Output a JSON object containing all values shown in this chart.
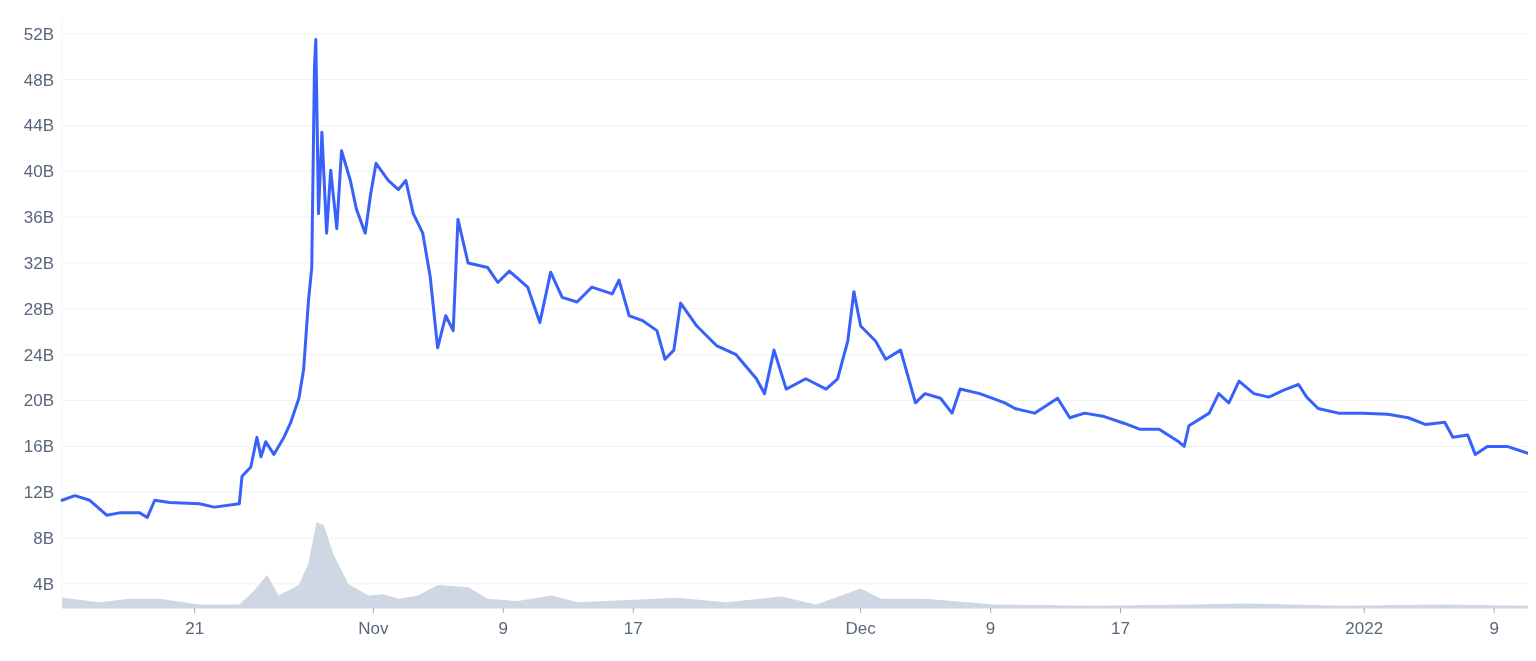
{
  "chart_data": {
    "type": "line",
    "grid": "y",
    "xlim": [
      "2021-10-12T20:00",
      "2022-01-11T02:00"
    ],
    "ylim": [
      1.9,
      53.2
    ],
    "yticks": [
      {
        "value": 4,
        "label": "4B"
      },
      {
        "value": 8,
        "label": "8B"
      },
      {
        "value": 12,
        "label": "12B"
      },
      {
        "value": 16,
        "label": "16B"
      },
      {
        "value": 20,
        "label": "20B"
      },
      {
        "value": 24,
        "label": "24B"
      },
      {
        "value": 28,
        "label": "28B"
      },
      {
        "value": 32,
        "label": "32B"
      },
      {
        "value": 36,
        "label": "36B"
      },
      {
        "value": 40,
        "label": "40B"
      },
      {
        "value": 44,
        "label": "44B"
      },
      {
        "value": 48,
        "label": "48B"
      },
      {
        "value": 52,
        "label": "52B"
      }
    ],
    "xticks": [
      {
        "value": "2021-10-21",
        "label": "21"
      },
      {
        "value": "2021-11-01",
        "label": "Nov"
      },
      {
        "value": "2021-11-09",
        "label": "9"
      },
      {
        "value": "2021-11-17",
        "label": "17"
      },
      {
        "value": "2021-12-01",
        "label": "Dec"
      },
      {
        "value": "2021-12-09",
        "label": "9"
      },
      {
        "value": "2021-12-17",
        "label": "17"
      },
      {
        "value": "2022-01-01",
        "label": "2022"
      },
      {
        "value": "2022-01-09",
        "label": "9"
      }
    ],
    "series": [
      {
        "type": "area",
        "color": "#cfd6e4",
        "x": [
          "2021-10-12T20:00",
          "2021-10-15T04:00",
          "2021-10-17T00:00",
          "2021-10-18T20:00",
          "2021-10-21T07:00",
          "2021-10-23T18:00",
          "2021-10-24T16:00",
          "2021-10-25T11:00",
          "2021-10-26T04:00",
          "2021-10-27T10:00",
          "2021-10-28T00:00",
          "2021-10-28T12:00",
          "2021-10-28T23:00",
          "2021-10-29T13:00",
          "2021-10-30T11:00",
          "2021-10-31T17:00",
          "2021-11-01T15:00",
          "2021-11-02T13:00",
          "2021-11-03T18:00",
          "2021-11-04T23:00",
          "2021-11-06T20:00",
          "2021-11-08T01:00",
          "2021-11-09T21:00",
          "2021-11-12T00:00",
          "2021-11-13T13:00",
          "2021-11-16T16:00",
          "2021-11-19T16:00",
          "2021-11-22T18:00",
          "2021-11-26T03:00",
          "2021-11-28T06:00",
          "2021-12-01T00:00",
          "2021-12-02T06:00",
          "2021-12-04T23:00",
          "2021-12-09T06:00",
          "2021-12-15T10:00",
          "2021-12-21T12:00",
          "2021-12-24T14:00",
          "2021-12-30T17:00",
          "2022-01-05T20:00",
          "2022-01-11T02:00"
        ],
        "values": [
          2.8,
          2.4,
          2.7,
          2.7,
          2.2,
          2.2,
          3.4,
          4.8,
          3.0,
          3.9,
          5.8,
          9.4,
          9.1,
          6.6,
          4.0,
          3.0,
          3.1,
          2.7,
          3.0,
          3.9,
          3.7,
          2.7,
          2.5,
          3.0,
          2.4,
          2.6,
          2.8,
          2.4,
          2.9,
          2.2,
          3.6,
          2.7,
          2.7,
          2.2,
          2.1,
          2.2,
          2.3,
          2.1,
          2.2,
          2.1
        ]
      },
      {
        "color": "#3861fb",
        "x": [
          "2021-10-12T20:00",
          "2021-10-13T15:00",
          "2021-10-14T13:00",
          "2021-10-15T14:00",
          "2021-10-16T09:00",
          "2021-10-17T15:00",
          "2021-10-18T02:00",
          "2021-10-18T13:00",
          "2021-10-19T11:00",
          "2021-10-21T07:00",
          "2021-10-22T05:00",
          "2021-10-23T18:00",
          "2021-10-23T22:00",
          "2021-10-24T11:00",
          "2021-10-24T20:00",
          "2021-10-25T02:00",
          "2021-10-25T09:00",
          "2021-10-25T21:00",
          "2021-10-26T12:00",
          "2021-10-26T22:00",
          "2021-10-27T10:00",
          "2021-10-27T17:00",
          "2021-10-28T00:00",
          "2021-10-28T05:00",
          "2021-10-28T09:00",
          "2021-10-28T11:00",
          "2021-10-28T15:00",
          "2021-10-28T20:00",
          "2021-10-29T03:00",
          "2021-10-29T09:00",
          "2021-10-29T18:00",
          "2021-10-30T01:00",
          "2021-10-30T14:00",
          "2021-10-30T23:00",
          "2021-10-31T12:00",
          "2021-10-31T20:00",
          "2021-11-01T04:00",
          "2021-11-01T22:00",
          "2021-11-02T13:00",
          "2021-11-03T00:00",
          "2021-11-03T11:00",
          "2021-11-04T01:00",
          "2021-11-04T12:00",
          "2021-11-04T23:00",
          "2021-11-05T11:00",
          "2021-11-05T22:00",
          "2021-11-06T05:00",
          "2021-11-06T20:00",
          "2021-11-08T01:00",
          "2021-11-08T16:00",
          "2021-11-09T09:00",
          "2021-11-10T12:00",
          "2021-11-11T06:00",
          "2021-11-11T22:00",
          "2021-11-12T15:00",
          "2021-11-13T13:00",
          "2021-11-14T11:00",
          "2021-11-15T17:00",
          "2021-11-16T03:00",
          "2021-11-16T18:00",
          "2021-11-17T13:00",
          "2021-11-18T11:00",
          "2021-11-18T23:00",
          "2021-11-19T12:00",
          "2021-11-19T22:00",
          "2021-11-20T22:00",
          "2021-11-22T03:00",
          "2021-11-23T08:00",
          "2021-11-24T14:00",
          "2021-11-25T02:00",
          "2021-11-25T16:00",
          "2021-11-26T10:00",
          "2021-11-27T15:00",
          "2021-11-28T21:00",
          "2021-11-29T14:00",
          "2021-11-30T05:00",
          "2021-11-30T14:00",
          "2021-12-01T00:00",
          "2021-12-01T22:00",
          "2021-12-02T13:00",
          "2021-12-03T11:00",
          "2021-12-03T21:00",
          "2021-12-04T09:00",
          "2021-12-04T23:00",
          "2021-12-05T22:00",
          "2021-12-06T15:00",
          "2021-12-07T03:00",
          "2021-12-08T08:00",
          "2021-12-09T21:00",
          "2021-12-10T12:00",
          "2021-12-11T17:00",
          "2021-12-13T03:00",
          "2021-12-13T21:00",
          "2021-12-14T19:00",
          "2021-12-16T00:00",
          "2021-12-17T06:00",
          "2021-12-18T04:00",
          "2021-12-19T09:00",
          "2021-12-20T14:00",
          "2021-12-20T22:00",
          "2021-12-21T05:00",
          "2021-12-22T11:00",
          "2021-12-23T01:00",
          "2021-12-23T16:00",
          "2021-12-24T07:00",
          "2021-12-25T05:00",
          "2021-12-26T03:00",
          "2021-12-27T01:00",
          "2021-12-27T23:00",
          "2021-12-28T11:00",
          "2021-12-29T04:00",
          "2021-12-30T10:00",
          "2021-12-31T22:00",
          "2022-01-02T11:00",
          "2022-01-03T17:00",
          "2022-01-04T19:00",
          "2022-01-05T23:00",
          "2022-01-06T11:00",
          "2022-01-07T09:00",
          "2022-01-07T20:00",
          "2022-01-08T14:00",
          "2022-01-09T19:00",
          "2022-01-11T02:00"
        ],
        "values": [
          11.3,
          11.7,
          11.3,
          10.0,
          10.2,
          10.2,
          9.8,
          11.3,
          11.1,
          11.0,
          10.7,
          11.0,
          13.4,
          14.2,
          16.8,
          15.1,
          16.4,
          15.3,
          16.8,
          18.1,
          20.2,
          22.7,
          28.6,
          31.6,
          49.0,
          51.5,
          36.3,
          43.4,
          34.6,
          40.1,
          35.0,
          41.8,
          39.2,
          36.7,
          34.6,
          38.0,
          40.7,
          39.2,
          38.4,
          39.2,
          36.3,
          34.6,
          30.8,
          24.6,
          27.4,
          26.1,
          35.8,
          32.0,
          31.6,
          30.3,
          31.3,
          29.9,
          26.8,
          31.2,
          29.0,
          28.6,
          29.9,
          29.3,
          30.5,
          27.4,
          27.0,
          26.1,
          23.6,
          24.4,
          28.5,
          26.5,
          24.8,
          24.0,
          21.9,
          20.6,
          24.4,
          21.0,
          21.9,
          21.0,
          21.9,
          25.2,
          29.5,
          26.5,
          25.2,
          23.6,
          24.4,
          22.3,
          19.8,
          20.6,
          20.2,
          18.9,
          21.0,
          20.6,
          19.8,
          19.3,
          18.9,
          20.2,
          18.5,
          18.9,
          18.6,
          18.0,
          17.5,
          17.5,
          16.4,
          16.0,
          17.8,
          18.9,
          20.6,
          19.8,
          21.7,
          20.6,
          20.3,
          20.9,
          21.4,
          20.3,
          19.3,
          18.9,
          18.9,
          18.8,
          18.5,
          17.9,
          18.1,
          16.8,
          17.0,
          15.3,
          16.0,
          16.0,
          15.4
        ]
      }
    ]
  }
}
